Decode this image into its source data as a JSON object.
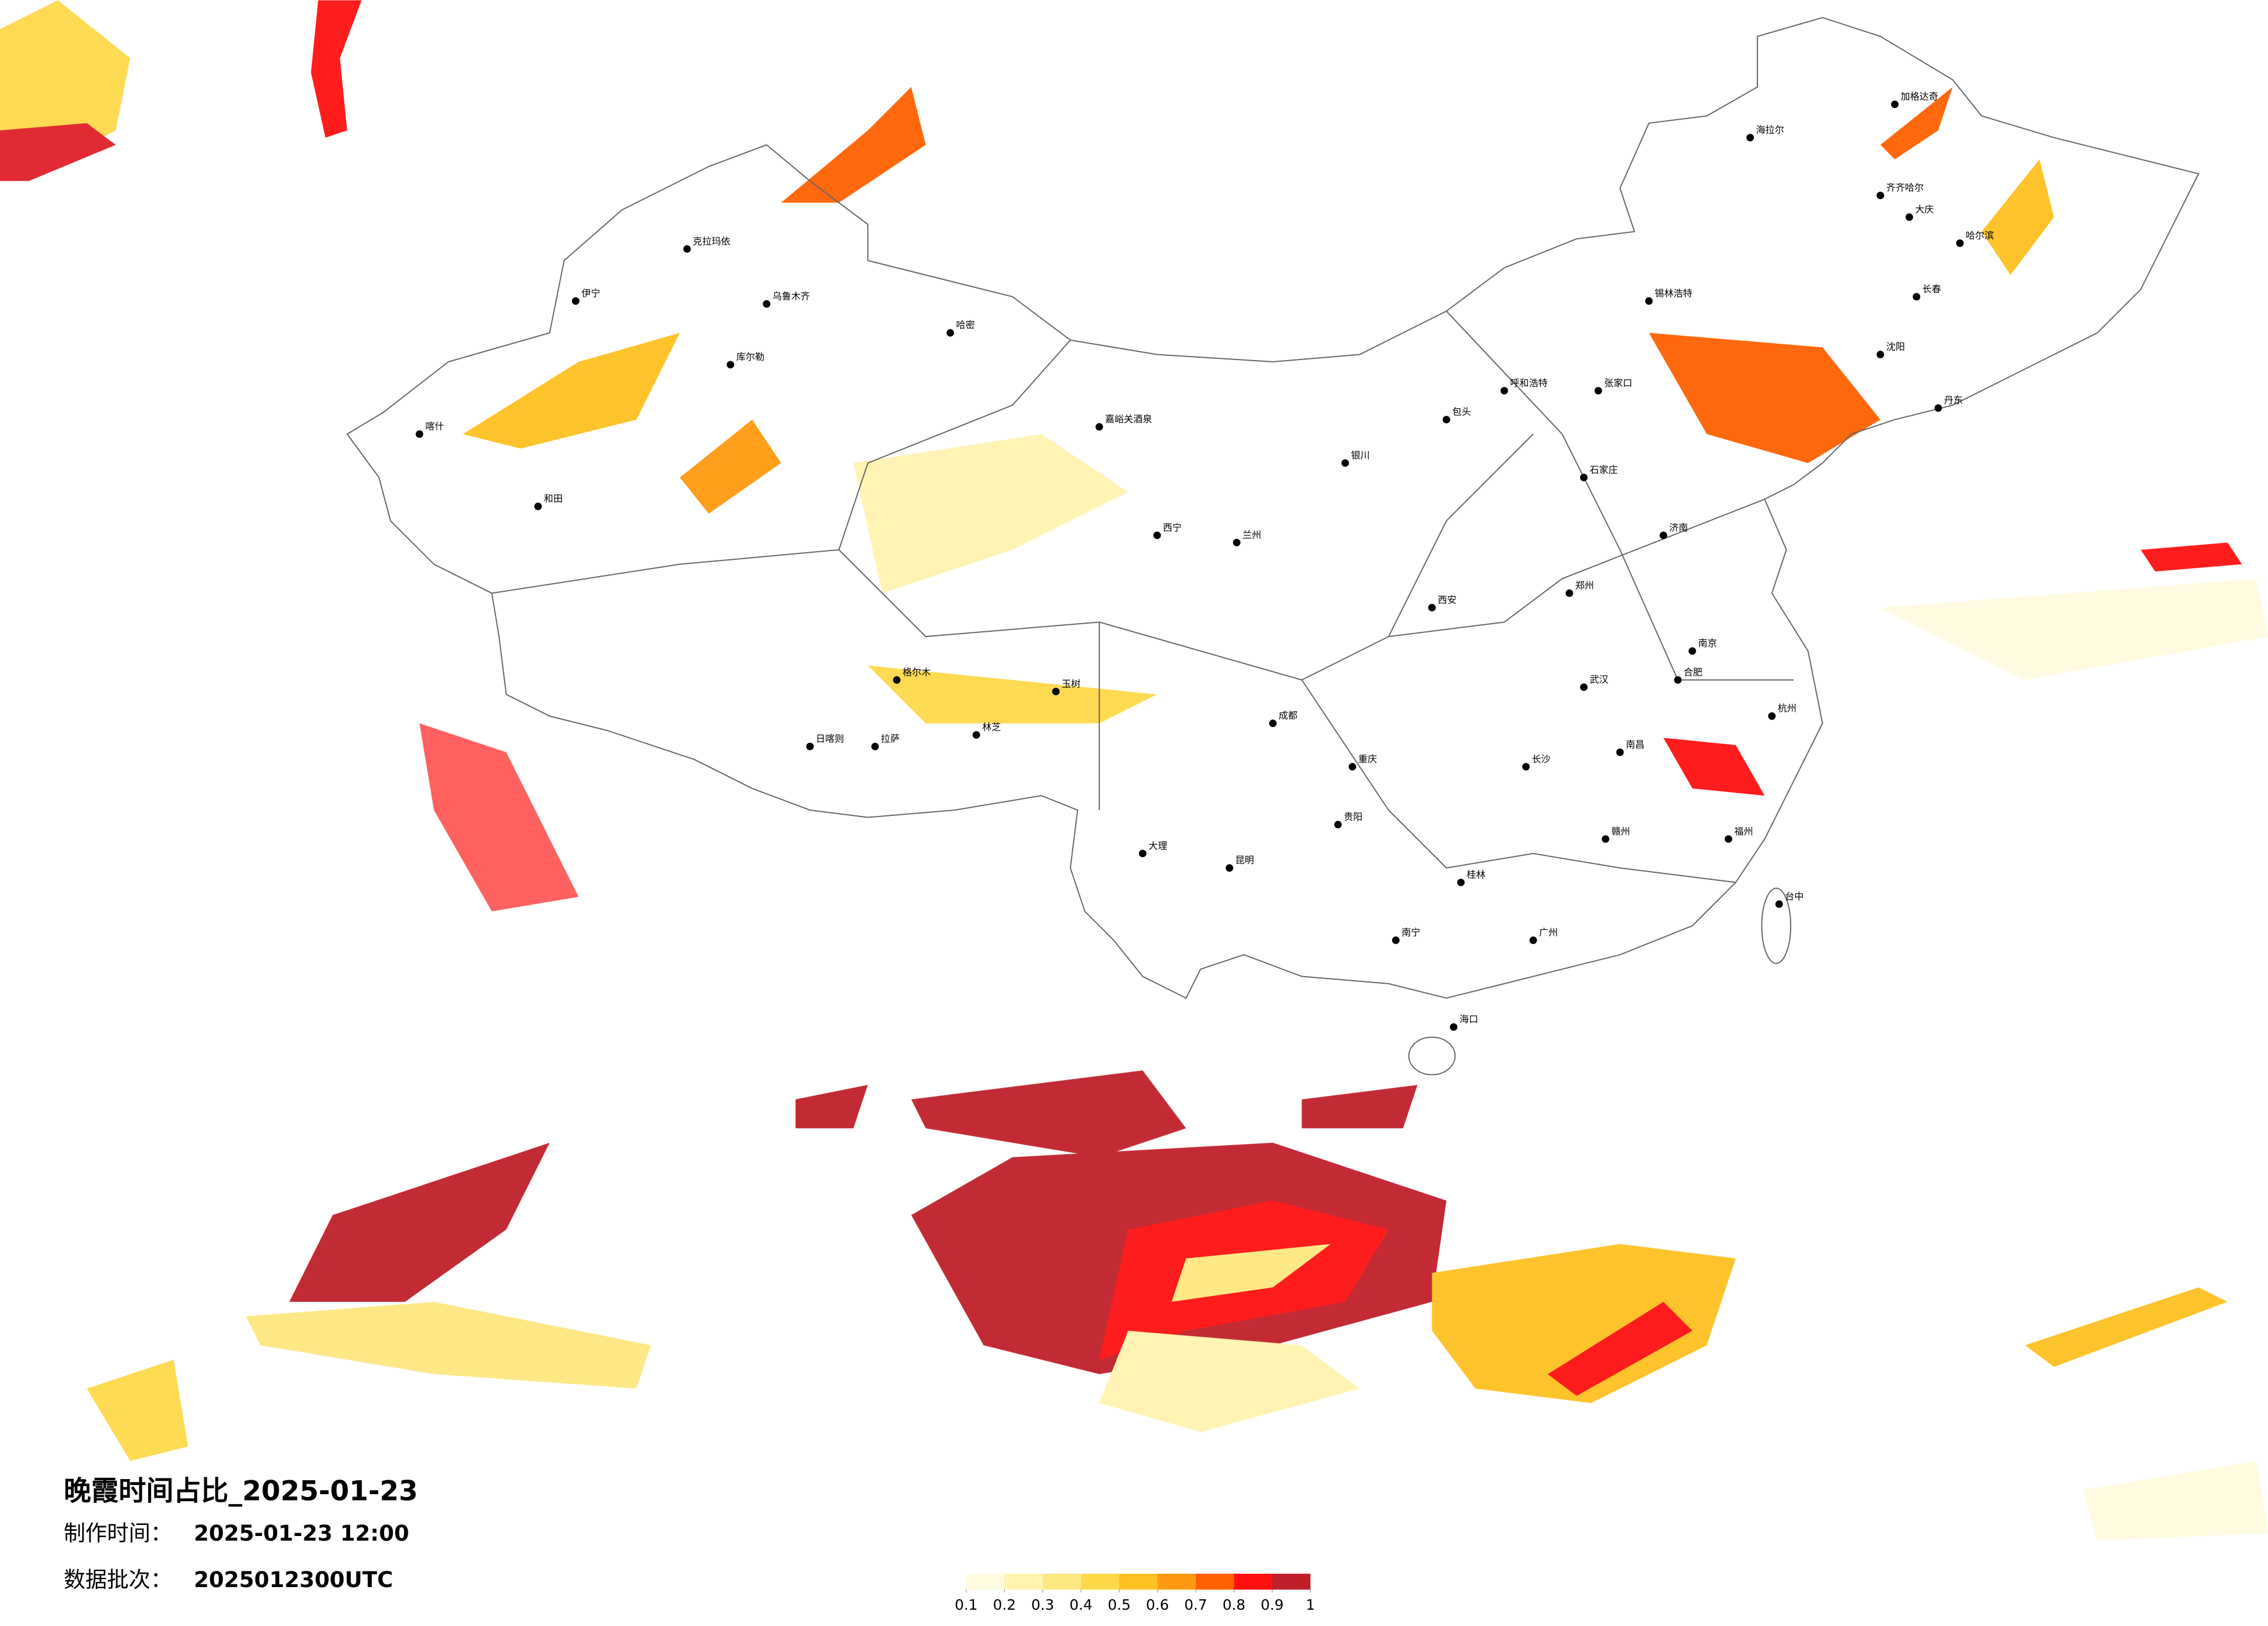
{
  "header": {
    "title": "晚霞时间占比_2025-01-23",
    "made_label": "制作时间：",
    "made_time": "2025-01-23 12:00",
    "batch_label": "数据批次：",
    "batch": "2025012300UTC"
  },
  "legend": {
    "ticks": [
      0.1,
      0.2,
      0.3,
      0.4,
      0.5,
      0.6,
      0.7,
      0.8,
      0.9,
      1
    ],
    "colors": [
      "#fffbe0",
      "#fff4b0",
      "#ffe880",
      "#ffd84a",
      "#ffc020",
      "#ff9a10",
      "#ff6000",
      "#ff1010",
      "#c0202a"
    ]
  },
  "cities": [
    "乌鲁木齐",
    "克拉玛依",
    "伊宁",
    "库尔勒",
    "喀什",
    "和田",
    "哈密",
    "嘉峪关酒泉",
    "西宁",
    "拉萨",
    "日喀则",
    "林芝",
    "兰州",
    "银川",
    "呼和浩特",
    "石家庄",
    "郑州",
    "西安",
    "成都",
    "重庆",
    "昆明",
    "贵阳",
    "南宁",
    "广州",
    "长沙",
    "武汉",
    "南京",
    "杭州",
    "福州",
    "南昌",
    "合肥",
    "济南",
    "沈阳",
    "长春",
    "哈尔滨",
    "齐齐哈尔",
    "海拉尔",
    "锡林浩特",
    "海口",
    "台中",
    "加格达奇",
    "大庆",
    "张家口",
    "包头",
    "格尔木",
    "玉树",
    "大理",
    "桂林",
    "赣州",
    "丹东"
  ]
}
